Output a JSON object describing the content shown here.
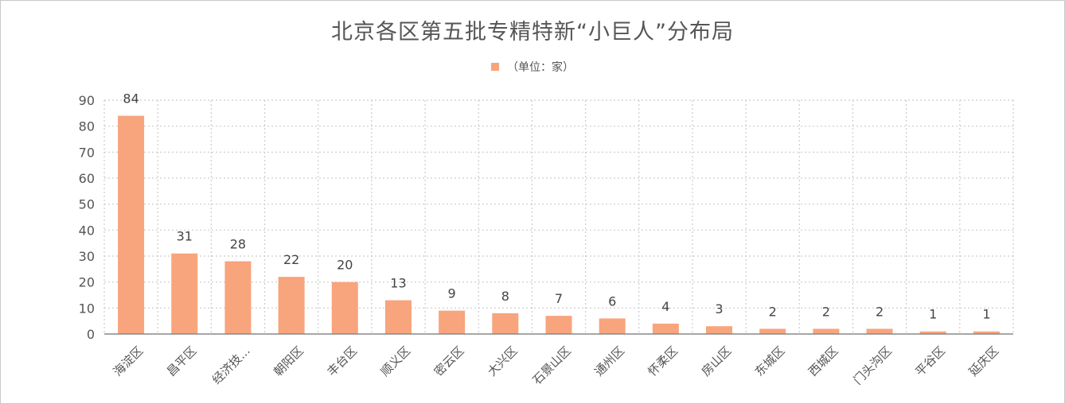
{
  "chart_data": {
    "type": "bar",
    "title": "北京各区第五批专精特新“小巨人”分布局",
    "legend": [
      "（单位：家）"
    ],
    "legend_position": "top-center",
    "categories": [
      "海淀区",
      "昌平区",
      "经济技...",
      "朝阳区",
      "丰台区",
      "顺义区",
      "密云区",
      "大兴区",
      "石景山区",
      "通州区",
      "怀柔区",
      "房山区",
      "东城区",
      "西城区",
      "门头沟区",
      "平谷区",
      "延庆区"
    ],
    "series": [
      {
        "name": "（单位：家）",
        "values": [
          84,
          31,
          28,
          22,
          20,
          13,
          9,
          8,
          7,
          6,
          4,
          3,
          2,
          2,
          2,
          1,
          1
        ]
      }
    ],
    "ylim": [
      0,
      90
    ],
    "y_ticks": [
      0,
      10,
      20,
      30,
      40,
      50,
      60,
      70,
      80,
      90
    ],
    "xlabel": "",
    "ylabel": "",
    "grid": true,
    "colors": {
      "bar": "#f8a47c",
      "grid": "#cccccc",
      "axis": "#888888"
    }
  }
}
